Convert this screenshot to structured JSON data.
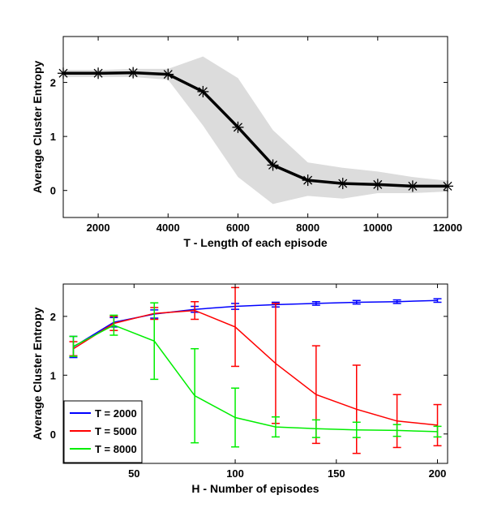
{
  "chart_data": [
    {
      "type": "line",
      "title": "",
      "xlabel": "T - Length of each episode",
      "ylabel": "Average Cluster Entropy",
      "xlim": [
        1000,
        12000
      ],
      "ylim": [
        -0.5,
        2.85
      ],
      "xticks": [
        2000,
        4000,
        6000,
        8000,
        10000,
        12000
      ],
      "yticks": [
        0,
        1,
        2
      ],
      "grid": false,
      "series": [
        {
          "x": [
            1000,
            2000,
            3000,
            4000,
            5000,
            6000,
            7000,
            8000,
            9000,
            10000,
            11000,
            12000
          ],
          "values": [
            2.17,
            2.17,
            2.18,
            2.15,
            1.83,
            1.17,
            0.47,
            0.19,
            0.13,
            0.11,
            0.08,
            0.08
          ],
          "band_upper": [
            2.23,
            2.23,
            2.25,
            2.25,
            2.48,
            2.08,
            1.12,
            0.52,
            0.42,
            0.35,
            0.25,
            0.18
          ],
          "band_lower": [
            2.1,
            2.1,
            2.1,
            2.05,
            1.2,
            0.25,
            -0.25,
            -0.1,
            -0.15,
            -0.05,
            -0.05,
            -0.02
          ],
          "color": "#000000",
          "band_color": "#dcdcdc",
          "marker": "asterisk"
        }
      ]
    },
    {
      "type": "line",
      "title": "",
      "xlabel": "H - Number of episodes",
      "ylabel": "Average Cluster Entropy",
      "xlim": [
        15,
        205
      ],
      "ylim": [
        -0.5,
        2.55
      ],
      "xticks": [
        50,
        100,
        150,
        200
      ],
      "yticks": [
        0,
        1,
        2
      ],
      "grid": false,
      "legend_position": "bottom-left",
      "x": [
        20,
        40,
        60,
        80,
        100,
        120,
        140,
        160,
        180,
        200
      ],
      "series": [
        {
          "name": "T = 2000",
          "color": "#0000ff",
          "values": [
            1.48,
            1.9,
            2.04,
            2.12,
            2.17,
            2.2,
            2.22,
            2.24,
            2.25,
            2.27
          ],
          "errors": [
            0.18,
            0.08,
            0.07,
            0.05,
            0.05,
            0.04,
            0.03,
            0.03,
            0.03,
            0.03
          ]
        },
        {
          "name": "T = 5000",
          "color": "#ff0000",
          "values": [
            1.45,
            1.88,
            2.05,
            2.1,
            1.82,
            1.2,
            0.67,
            0.42,
            0.22,
            0.15
          ],
          "errors": [
            0.12,
            0.12,
            0.1,
            0.15,
            0.67,
            1.02,
            0.83,
            0.75,
            0.45,
            0.35
          ]
        },
        {
          "name": "T = 8000",
          "color": "#00ee00",
          "values": [
            1.49,
            1.85,
            1.58,
            0.65,
            0.28,
            0.12,
            0.09,
            0.07,
            0.06,
            0.04
          ],
          "errors": [
            0.17,
            0.17,
            0.65,
            0.8,
            0.5,
            0.17,
            0.15,
            0.13,
            0.1,
            0.09
          ]
        }
      ]
    }
  ]
}
